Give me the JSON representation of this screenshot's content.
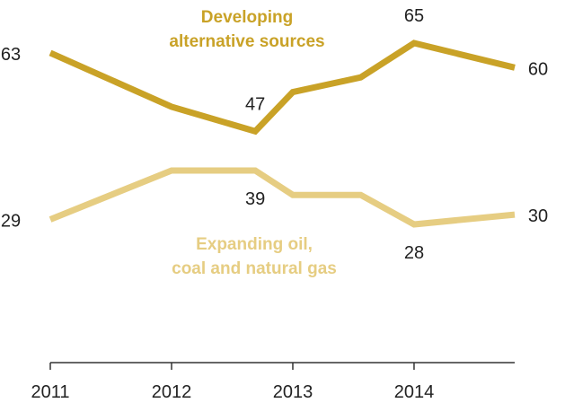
{
  "chart_data": {
    "type": "line",
    "x_ticks": [
      "2011",
      "2012",
      "2013",
      "2014"
    ],
    "x_range": [
      2011.0,
      2014.83
    ],
    "ylim": [
      0,
      80
    ],
    "grid": false,
    "legend": "inline labels",
    "series": [
      {
        "name_lines": [
          "Developing",
          "alternative sources"
        ],
        "color": "#c9a227",
        "points": [
          {
            "x": 2011.0,
            "y": 63,
            "label": "63"
          },
          {
            "x": 2012.0,
            "y": 52
          },
          {
            "x": 2012.69,
            "y": 47,
            "label": "47"
          },
          {
            "x": 2013.0,
            "y": 55
          },
          {
            "x": 2013.56,
            "y": 58
          },
          {
            "x": 2014.0,
            "y": 65,
            "label": "65"
          },
          {
            "x": 2014.83,
            "y": 60,
            "label": "60"
          }
        ]
      },
      {
        "name_lines": [
          "Expanding oil,",
          "coal and natural gas"
        ],
        "color": "#e6cd82",
        "points": [
          {
            "x": 2011.0,
            "y": 29,
            "label": "29"
          },
          {
            "x": 2012.0,
            "y": 39
          },
          {
            "x": 2012.69,
            "y": 39,
            "label": "39"
          },
          {
            "x": 2013.0,
            "y": 34
          },
          {
            "x": 2013.56,
            "y": 34
          },
          {
            "x": 2014.0,
            "y": 28,
            "label": "28"
          },
          {
            "x": 2014.83,
            "y": 30,
            "label": "30"
          }
        ]
      }
    ]
  }
}
